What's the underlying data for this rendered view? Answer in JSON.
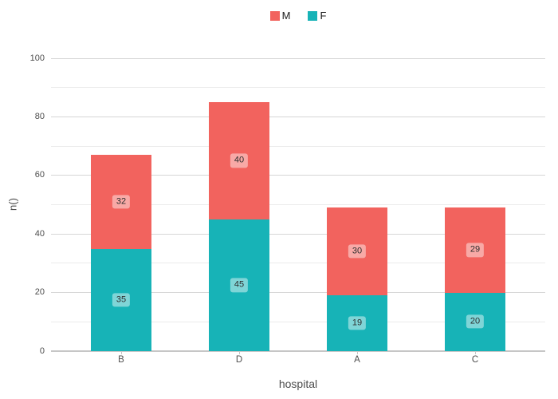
{
  "chart_data": {
    "type": "bar",
    "stacked": true,
    "title": "",
    "xlabel": "hospital",
    "ylabel": "n()",
    "categories": [
      "B",
      "D",
      "A",
      "C"
    ],
    "series": [
      {
        "name": "F",
        "color": "#17b3b7",
        "values": [
          35,
          45,
          19,
          20
        ]
      },
      {
        "name": "M",
        "color": "#f2635e",
        "values": [
          32,
          40,
          30,
          29
        ]
      }
    ],
    "ylim": [
      0,
      100
    ],
    "yticks_major": [
      0,
      20,
      40,
      60,
      80,
      100
    ],
    "yticks_minor": [
      10,
      30,
      50,
      70,
      90
    ],
    "grid": true,
    "bar_value_labels": true,
    "legend": {
      "position": "top-center",
      "order": [
        "M",
        "F"
      ]
    }
  }
}
